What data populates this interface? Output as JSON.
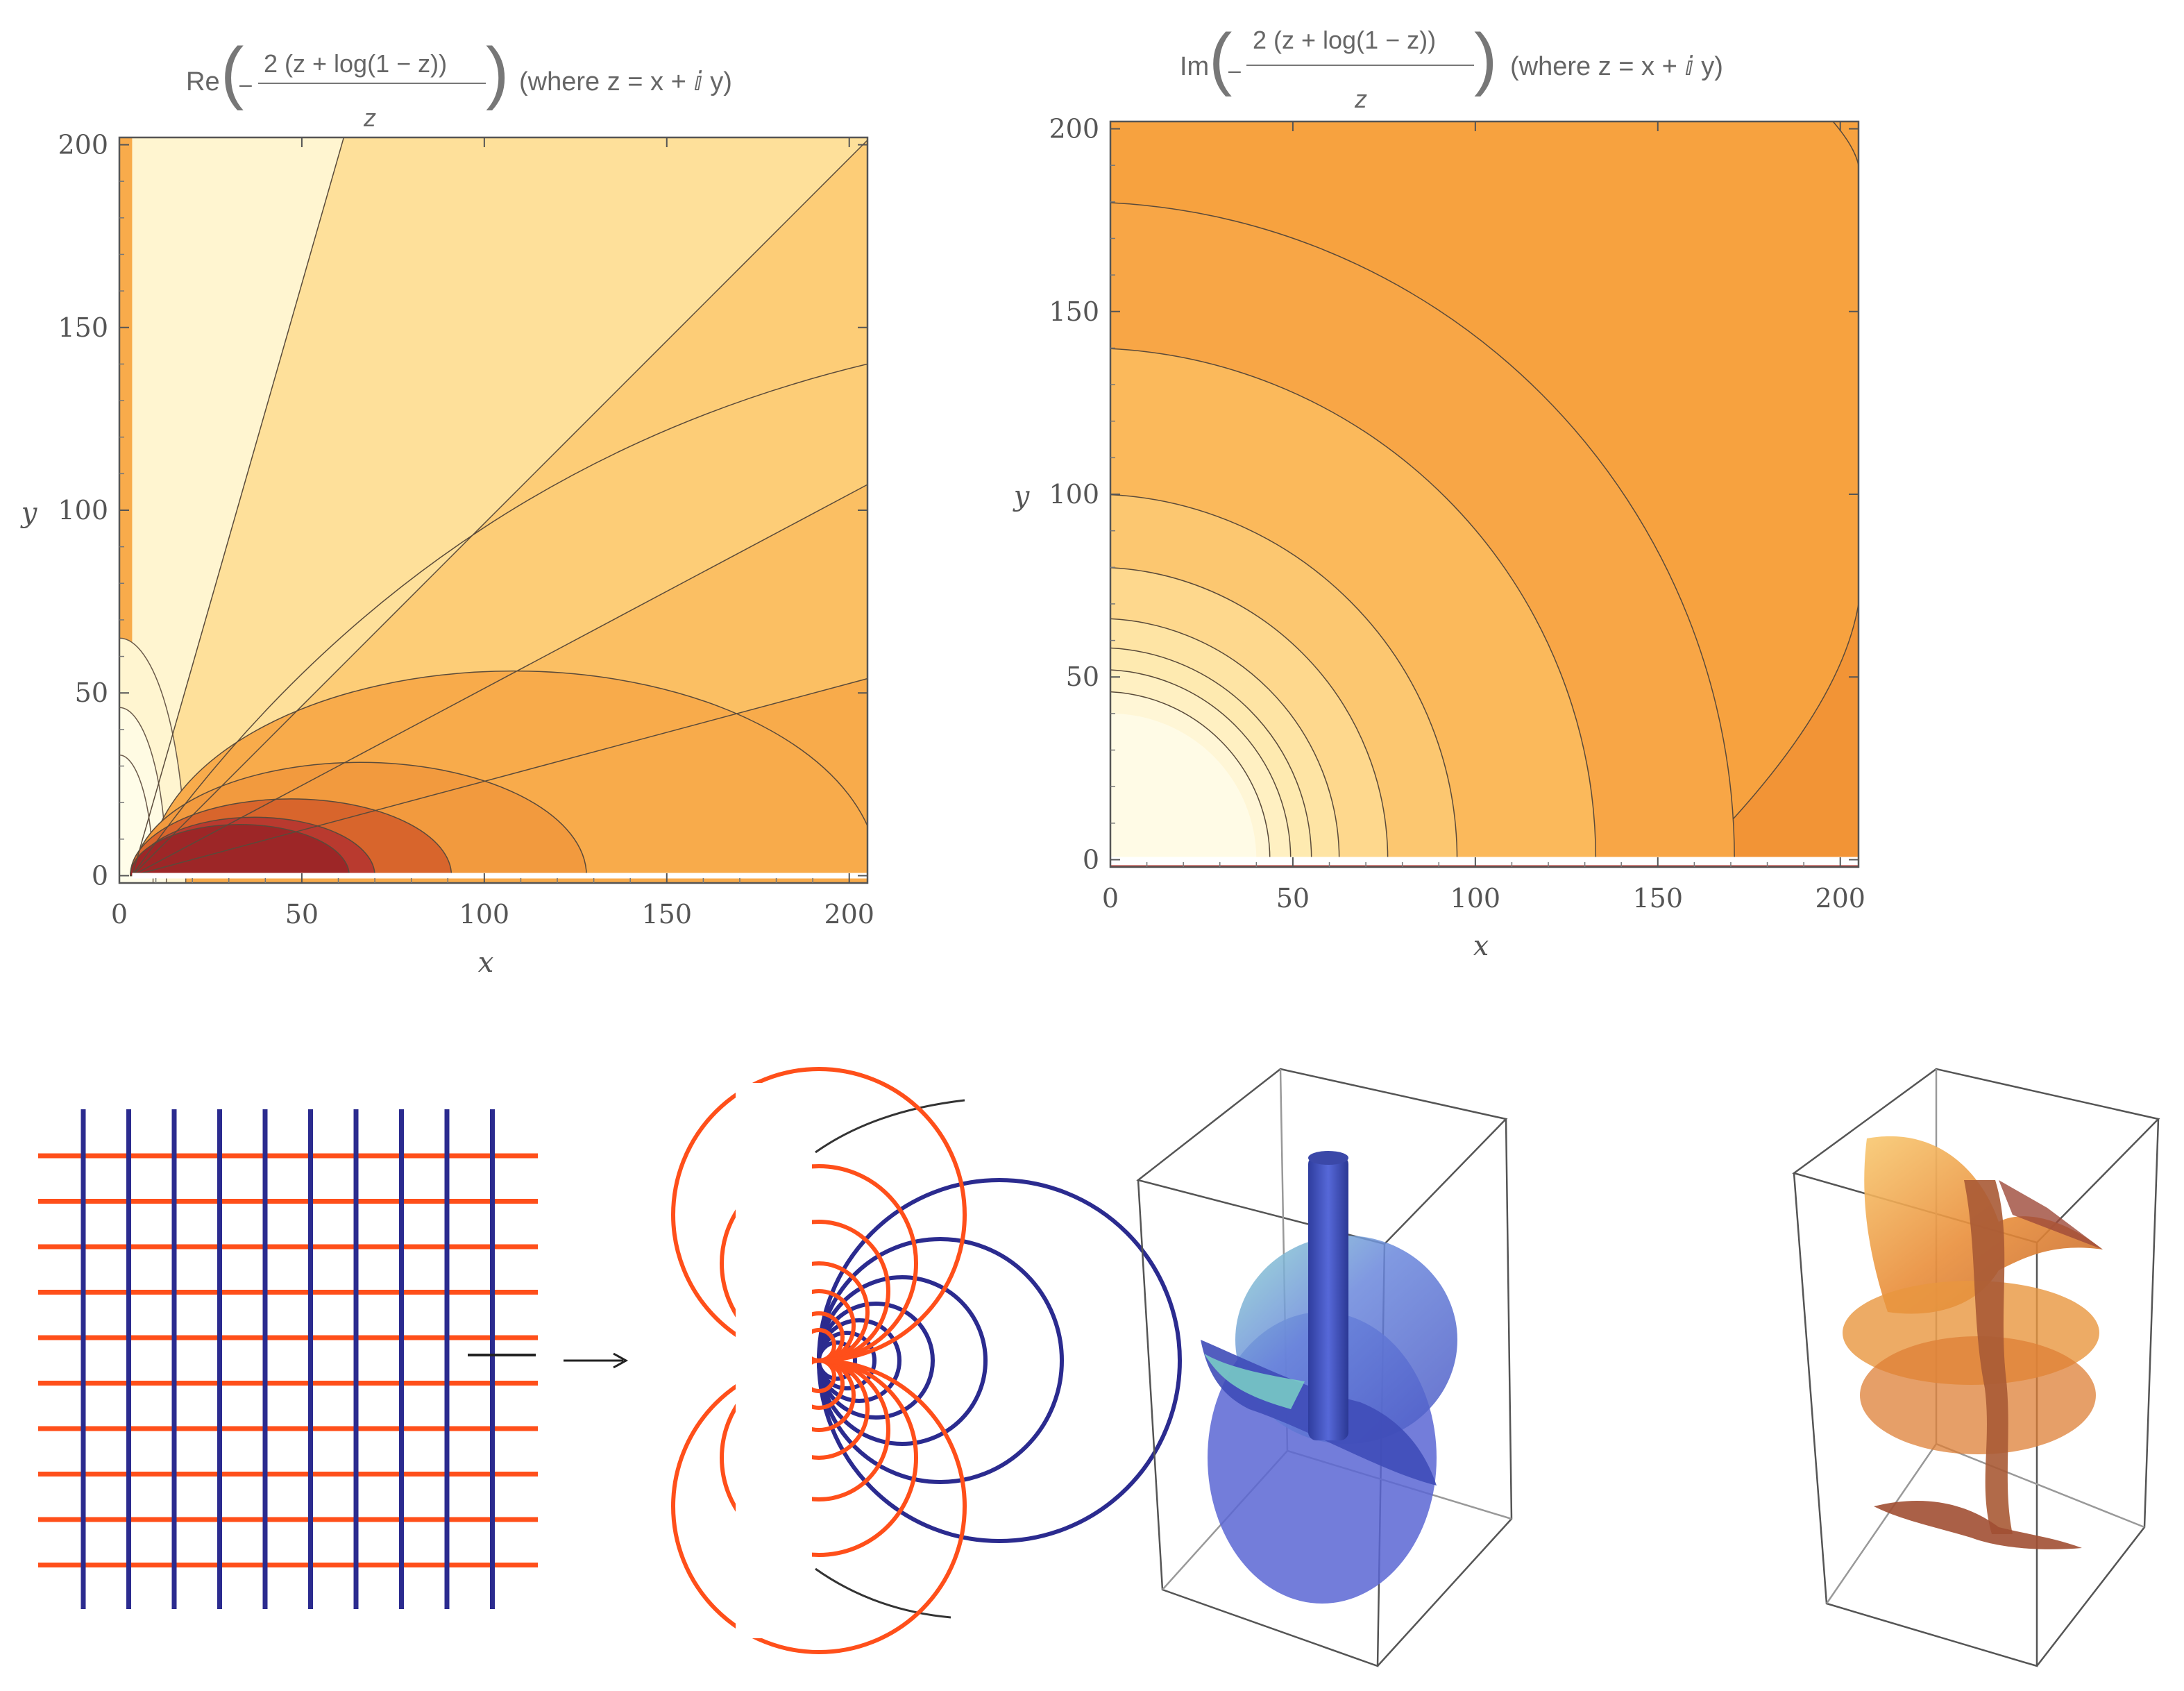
{
  "chart_data": [
    {
      "type": "contour",
      "id": "re-plot",
      "title_parts": {
        "func": "Re",
        "numerator": "2 (z + log(1 − z))",
        "denominator": "z",
        "where": "(where z = x + ⅈ y)"
      },
      "xlabel": "x",
      "ylabel": "y",
      "xlim": [
        0,
        205
      ],
      "ylim": [
        -2,
        202
      ],
      "xticks": [
        0,
        50,
        100,
        150,
        200
      ],
      "yticks": [
        0,
        50,
        100,
        150,
        200
      ],
      "bands_from_origin": [
        "#9d2627",
        "#b93a2f",
        "#d8652c",
        "#f29a3e",
        "#f8ab4b",
        "#fbbf63",
        "#fdcd77",
        "#fee09a",
        "#fff5d0"
      ],
      "semicircle_radii": [
        35,
        44,
        61,
        85,
        100
      ],
      "semicircle_center_x": 3.5,
      "rays_deg": [
        15,
        28,
        45,
        74
      ]
    },
    {
      "type": "contour",
      "id": "im-plot",
      "title_parts": {
        "func": "Im",
        "numerator": "2 (z + log(1 − z))",
        "denominator": "z",
        "where": "(where z = x + ⅈ y)"
      },
      "xlabel": "x",
      "ylabel": "y",
      "xlim": [
        0,
        205
      ],
      "ylim": [
        -2,
        202
      ],
      "xticks": [
        0,
        50,
        100,
        150,
        200
      ],
      "yticks": [
        0,
        50,
        100,
        150,
        200
      ],
      "circle_radii": [
        46,
        52,
        58,
        66,
        80,
        100,
        140,
        180
      ],
      "circle_colors": [
        "#fff6d6",
        "#fff0c2",
        "#feeab0",
        "#fee4a4",
        "#fed88d",
        "#fcc770",
        "#fbb95b",
        "#f8a646"
      ],
      "outer_color": "#f7a23f",
      "corner_color": "#f29436",
      "bottom_strip_color": "#b33a35"
    }
  ],
  "bottom": {
    "arrow_symbol": "⟶",
    "grid_colors": {
      "vertical": "#2b2b8f",
      "horizontal": "#ff4f1a"
    },
    "surface_colors": {
      "blue": "#5b6bd6",
      "orange": "#f4a640"
    }
  }
}
